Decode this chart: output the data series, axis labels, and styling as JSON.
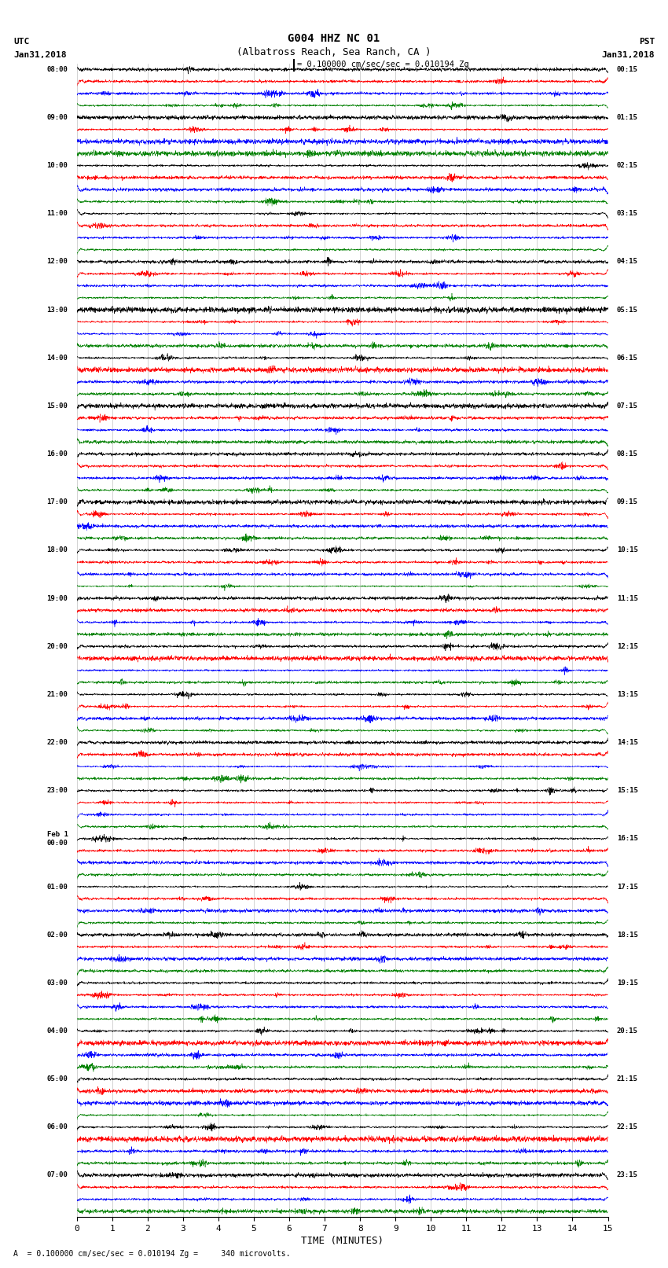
{
  "title_line1": "G004 HHZ NC 01",
  "title_line2": "(Albatross Reach, Sea Ranch, CA )",
  "scale_text": "= 0.100000 cm/sec/sec = 0.010194 Zg",
  "left_label_top": "UTC",
  "left_label_date": "Jan31,2018",
  "right_label_top": "PST",
  "right_label_date": "Jan31,2018",
  "xlabel": "TIME (MINUTES)",
  "bottom_note": "A  = 0.100000 cm/sec/sec = 0.010194 Zg =     340 microvolts.",
  "x_min": 0,
  "x_max": 15,
  "x_ticks": [
    0,
    1,
    2,
    3,
    4,
    5,
    6,
    7,
    8,
    9,
    10,
    11,
    12,
    13,
    14,
    15
  ],
  "colors": [
    "black",
    "red",
    "blue",
    "green"
  ],
  "left_times_labels": [
    "08:00",
    "09:00",
    "10:00",
    "11:00",
    "12:00",
    "13:00",
    "14:00",
    "15:00",
    "16:00",
    "17:00",
    "18:00",
    "19:00",
    "20:00",
    "21:00",
    "22:00",
    "23:00",
    "Feb 1\n00:00",
    "01:00",
    "02:00",
    "03:00",
    "04:00",
    "05:00",
    "06:00",
    "07:00"
  ],
  "right_times_labels": [
    "00:15",
    "01:15",
    "02:15",
    "03:15",
    "04:15",
    "05:15",
    "06:15",
    "07:15",
    "08:15",
    "09:15",
    "10:15",
    "11:15",
    "12:15",
    "13:15",
    "14:15",
    "15:15",
    "16:15",
    "17:15",
    "18:15",
    "19:15",
    "20:15",
    "21:15",
    "22:15",
    "23:15"
  ],
  "n_hours": 24,
  "traces_per_hour": 4,
  "fig_width": 8.5,
  "fig_height": 16.13,
  "dpi": 100,
  "background_color": "white"
}
